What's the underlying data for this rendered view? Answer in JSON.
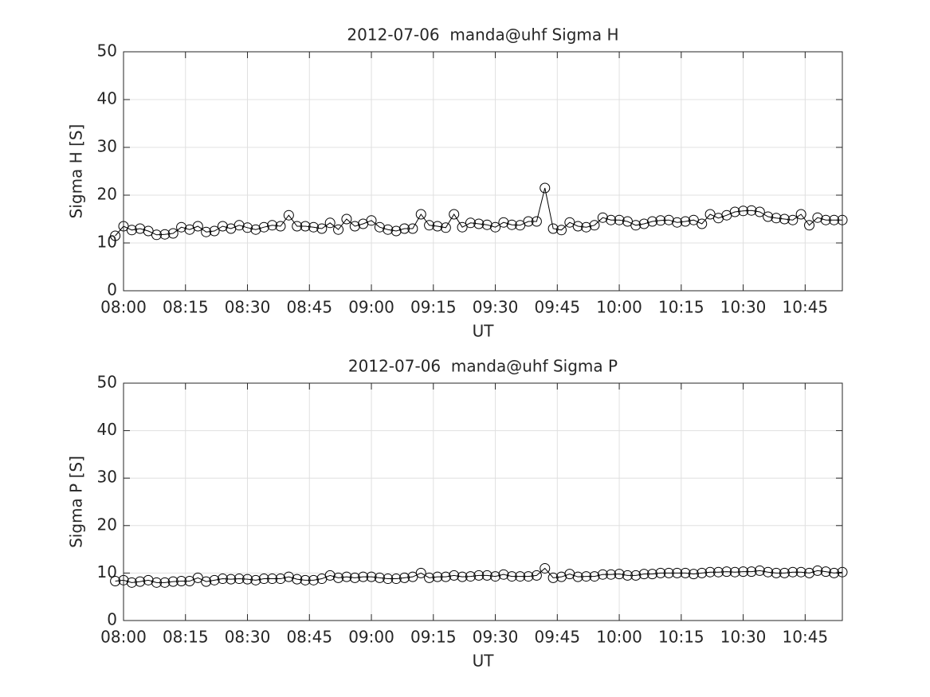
{
  "chart_data": [
    {
      "type": "line",
      "title": "2012-07-06  manda@uhf Sigma H",
      "xlabel": "UT",
      "ylabel": "Sigma H [S]",
      "x": [
        478,
        480,
        482,
        484,
        486,
        488,
        490,
        492,
        494,
        496,
        498,
        500,
        502,
        504,
        506,
        508,
        510,
        512,
        514,
        516,
        518,
        520,
        522,
        524,
        526,
        528,
        530,
        532,
        534,
        536,
        538,
        540,
        542,
        544,
        546,
        548,
        550,
        552,
        554,
        556,
        558,
        560,
        562,
        564,
        566,
        568,
        570,
        572,
        574,
        576,
        578,
        580,
        582,
        584,
        586,
        588,
        590,
        592,
        594,
        596,
        598,
        600,
        602,
        604,
        606,
        608,
        610,
        612,
        614,
        616,
        618,
        620,
        622,
        624,
        626,
        628,
        630,
        632,
        634,
        636,
        638,
        640,
        642,
        644,
        646,
        648,
        650,
        652,
        654
      ],
      "values": [
        11.5,
        13.5,
        12.7,
        13,
        12.5,
        11.7,
        11.8,
        12,
        13.3,
        12.8,
        13.5,
        12.3,
        12.5,
        13.5,
        13,
        13.7,
        13.2,
        12.8,
        13.3,
        13.7,
        13.5,
        15.8,
        13.5,
        13.5,
        13.3,
        13,
        14.2,
        12.8,
        15,
        13.5,
        14,
        14.7,
        13.3,
        12.8,
        12.5,
        13,
        13,
        16,
        13.7,
        13.5,
        13.2,
        16,
        13.3,
        14.2,
        14,
        13.8,
        13.3,
        14.3,
        13.8,
        13.7,
        14.5,
        14.5,
        21.5,
        13,
        12.7,
        14.3,
        13.5,
        13.3,
        13.7,
        15.3,
        14.8,
        14.8,
        14.5,
        13.7,
        14,
        14.5,
        14.7,
        14.8,
        14.3,
        14.5,
        14.8,
        14,
        16,
        15.2,
        15.8,
        16.5,
        16.7,
        16.8,
        16.5,
        15.5,
        15.2,
        15,
        14.8,
        16,
        13.7,
        15.3,
        14.8,
        14.8,
        14.8
      ],
      "color": "#000000",
      "marker": "circle",
      "xlim": [
        480,
        654
      ],
      "xticks": [
        {
          "value": 480,
          "label": "08:00"
        },
        {
          "value": 495,
          "label": "08:15"
        },
        {
          "value": 510,
          "label": "08:30"
        },
        {
          "value": 525,
          "label": "08:45"
        },
        {
          "value": 540,
          "label": "09:00"
        },
        {
          "value": 555,
          "label": "09:15"
        },
        {
          "value": 570,
          "label": "09:30"
        },
        {
          "value": 585,
          "label": "09:45"
        },
        {
          "value": 600,
          "label": "10:00"
        },
        {
          "value": 615,
          "label": "10:15"
        },
        {
          "value": 630,
          "label": "10:30"
        },
        {
          "value": 645,
          "label": "10:45"
        }
      ],
      "ylim": [
        0,
        50
      ],
      "yticks": [
        0,
        10,
        20,
        30,
        40,
        50
      ],
      "grid": true
    },
    {
      "type": "line",
      "title": "2012-07-06  manda@uhf Sigma P",
      "xlabel": "UT",
      "ylabel": "Sigma P [S]",
      "x": [
        478,
        480,
        482,
        484,
        486,
        488,
        490,
        492,
        494,
        496,
        498,
        500,
        502,
        504,
        506,
        508,
        510,
        512,
        514,
        516,
        518,
        520,
        522,
        524,
        526,
        528,
        530,
        532,
        534,
        536,
        538,
        540,
        542,
        544,
        546,
        548,
        550,
        552,
        554,
        556,
        558,
        560,
        562,
        564,
        566,
        568,
        570,
        572,
        574,
        576,
        578,
        580,
        582,
        584,
        586,
        588,
        590,
        592,
        594,
        596,
        598,
        600,
        602,
        604,
        606,
        608,
        610,
        612,
        614,
        616,
        618,
        620,
        622,
        624,
        626,
        628,
        630,
        632,
        634,
        636,
        638,
        640,
        642,
        644,
        646,
        648,
        650,
        652,
        654
      ],
      "values": [
        8.3,
        8.5,
        8,
        8.2,
        8.5,
        8,
        8,
        8.2,
        8.3,
        8.3,
        9,
        8.2,
        8.5,
        8.8,
        8.7,
        8.8,
        8.7,
        8.5,
        8.8,
        8.8,
        8.8,
        9.2,
        8.7,
        8.5,
        8.5,
        8.8,
        9.5,
        9,
        9.2,
        9,
        9.2,
        9.2,
        9,
        8.8,
        8.8,
        9,
        9.2,
        10,
        9,
        9.2,
        9.2,
        9.5,
        9.2,
        9.3,
        9.5,
        9.5,
        9.3,
        9.7,
        9.3,
        9.3,
        9.3,
        9.5,
        11,
        9,
        9.2,
        9.8,
        9.2,
        9.3,
        9.3,
        9.7,
        9.7,
        9.8,
        9.5,
        9.5,
        9.8,
        9.8,
        10,
        10,
        10,
        10,
        9.8,
        10,
        10.2,
        10.2,
        10.3,
        10.2,
        10.3,
        10.3,
        10.5,
        10.2,
        10,
        10,
        10.2,
        10.2,
        10,
        10.5,
        10.3,
        10,
        10.2
      ],
      "color": "#000000",
      "marker": "circle",
      "xlim": [
        480,
        654
      ],
      "xticks": [
        {
          "value": 480,
          "label": "08:00"
        },
        {
          "value": 495,
          "label": "08:15"
        },
        {
          "value": 510,
          "label": "08:30"
        },
        {
          "value": 525,
          "label": "08:45"
        },
        {
          "value": 540,
          "label": "09:00"
        },
        {
          "value": 555,
          "label": "09:15"
        },
        {
          "value": 570,
          "label": "09:30"
        },
        {
          "value": 585,
          "label": "09:45"
        },
        {
          "value": 600,
          "label": "10:00"
        },
        {
          "value": 615,
          "label": "10:15"
        },
        {
          "value": 630,
          "label": "10:30"
        },
        {
          "value": 645,
          "label": "10:45"
        }
      ],
      "ylim": [
        0,
        50
      ],
      "yticks": [
        0,
        10,
        20,
        30,
        40,
        50
      ],
      "grid": true
    }
  ]
}
